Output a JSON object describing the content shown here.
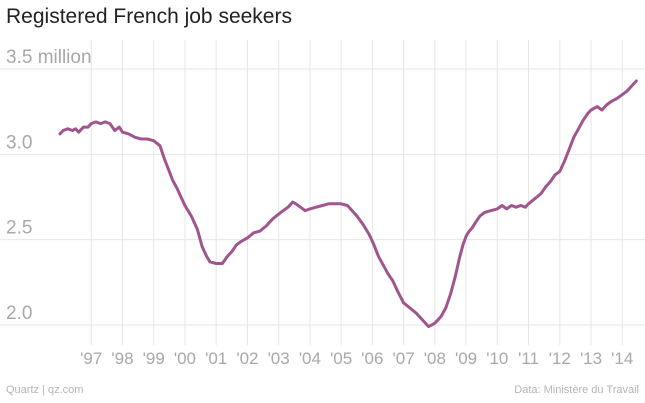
{
  "title": "Registered French job seekers",
  "footer": {
    "source": "Quartz | qz.com",
    "credit": "Data: Ministère du Travail"
  },
  "colors": {
    "line": "#a0558f",
    "grid": "#e6e6e6",
    "tick_text": "#a8a8a8"
  },
  "chart_data": {
    "type": "line",
    "title": "Registered French job seekers",
    "xlabel": "",
    "ylabel": "",
    "grid": true,
    "xlim": [
      1996.0,
      2014.6
    ],
    "ylim": [
      1.9,
      3.6
    ],
    "y_ticks": [
      {
        "value": 3.5,
        "label": "3.5 million"
      },
      {
        "value": 3.0,
        "label": "3.0"
      },
      {
        "value": 2.5,
        "label": "2.5"
      },
      {
        "value": 2.0,
        "label": "2.0"
      }
    ],
    "x_ticks": [
      {
        "value": 1997,
        "label": "'97"
      },
      {
        "value": 1998,
        "label": "'98"
      },
      {
        "value": 1999,
        "label": "'99"
      },
      {
        "value": 2000,
        "label": "'00"
      },
      {
        "value": 2001,
        "label": "'01"
      },
      {
        "value": 2002,
        "label": "'02"
      },
      {
        "value": 2003,
        "label": "'03"
      },
      {
        "value": 2004,
        "label": "'04"
      },
      {
        "value": 2005,
        "label": "'05"
      },
      {
        "value": 2006,
        "label": "'06"
      },
      {
        "value": 2007,
        "label": "'07"
      },
      {
        "value": 2008,
        "label": "'08"
      },
      {
        "value": 2009,
        "label": "'09"
      },
      {
        "value": 2010,
        "label": "'10"
      },
      {
        "value": 2011,
        "label": "'11"
      },
      {
        "value": 2012,
        "label": "'12"
      },
      {
        "value": 2013,
        "label": "'13"
      },
      {
        "value": 2014,
        "label": "'14"
      }
    ],
    "series": [
      {
        "x": [
          1996.0,
          1996.1,
          1996.25,
          1996.4,
          1996.5,
          1996.6,
          1996.75,
          1996.9,
          1997.0,
          1997.15,
          1997.3,
          1997.45,
          1997.6,
          1997.75,
          1997.9,
          1998.0,
          1998.2,
          1998.4,
          1998.6,
          1998.8,
          1999.0,
          1999.2,
          1999.35,
          1999.5,
          1999.6,
          1999.75,
          1999.9,
          2000.0,
          2000.2,
          2000.4,
          2000.55,
          2000.7,
          2000.8,
          2001.0,
          2001.2,
          2001.35,
          2001.5,
          2001.65,
          2001.8,
          2002.0,
          2002.2,
          2002.4,
          2002.6,
          2002.8,
          2003.0,
          2003.15,
          2003.3,
          2003.45,
          2003.55,
          2003.7,
          2003.85,
          2004.0,
          2004.2,
          2004.4,
          2004.6,
          2004.8,
          2005.0,
          2005.2,
          2005.35,
          2005.5,
          2005.7,
          2005.9,
          2006.05,
          2006.2,
          2006.35,
          2006.5,
          2006.65,
          2006.8,
          2007.0,
          2007.2,
          2007.4,
          2007.6,
          2007.8,
          2007.9,
          2008.0,
          2008.1,
          2008.2,
          2008.35,
          2008.5,
          2008.65,
          2008.8,
          2008.9,
          2009.0,
          2009.1,
          2009.2,
          2009.3,
          2009.45,
          2009.6,
          2009.8,
          2010.0,
          2010.15,
          2010.3,
          2010.45,
          2010.6,
          2010.75,
          2010.9,
          2011.0,
          2011.2,
          2011.4,
          2011.55,
          2011.7,
          2011.85,
          2012.0,
          2012.15,
          2012.3,
          2012.45,
          2012.6,
          2012.75,
          2012.9,
          2013.0,
          2013.1,
          2013.2,
          2013.35,
          2013.5,
          2013.65,
          2013.75,
          2013.85,
          2014.0,
          2014.15,
          2014.3,
          2014.45
        ],
        "values": [
          3.12,
          3.14,
          3.15,
          3.14,
          3.15,
          3.13,
          3.16,
          3.16,
          3.18,
          3.19,
          3.18,
          3.19,
          3.18,
          3.14,
          3.16,
          3.13,
          3.12,
          3.1,
          3.09,
          3.09,
          3.08,
          3.05,
          2.97,
          2.9,
          2.85,
          2.8,
          2.74,
          2.7,
          2.64,
          2.56,
          2.46,
          2.4,
          2.37,
          2.36,
          2.36,
          2.4,
          2.43,
          2.47,
          2.49,
          2.51,
          2.54,
          2.55,
          2.58,
          2.62,
          2.65,
          2.67,
          2.69,
          2.72,
          2.71,
          2.69,
          2.67,
          2.68,
          2.69,
          2.7,
          2.71,
          2.71,
          2.71,
          2.7,
          2.67,
          2.64,
          2.59,
          2.53,
          2.47,
          2.4,
          2.35,
          2.3,
          2.26,
          2.2,
          2.13,
          2.1,
          2.07,
          2.03,
          1.99,
          2.0,
          2.01,
          2.03,
          2.05,
          2.1,
          2.18,
          2.28,
          2.4,
          2.47,
          2.52,
          2.55,
          2.57,
          2.6,
          2.64,
          2.66,
          2.67,
          2.68,
          2.7,
          2.68,
          2.7,
          2.69,
          2.7,
          2.69,
          2.71,
          2.74,
          2.77,
          2.81,
          2.84,
          2.88,
          2.9,
          2.96,
          3.03,
          3.1,
          3.15,
          3.2,
          3.24,
          3.26,
          3.27,
          3.28,
          3.26,
          3.29,
          3.31,
          3.32,
          3.33,
          3.35,
          3.37,
          3.4,
          3.43
        ]
      }
    ]
  }
}
